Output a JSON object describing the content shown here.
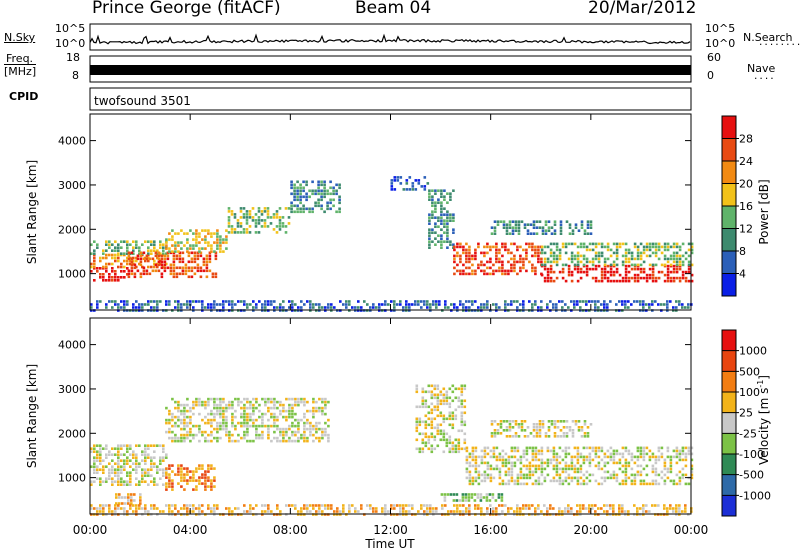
{
  "header": {
    "station": "Prince George (fitACF)",
    "beam": "Beam 04",
    "date": "20/Mar/2012"
  },
  "sky_panel": {
    "left_label": "N.Sky",
    "right_label": "N.Search",
    "left_ticks": [
      "10^5",
      "10^0"
    ],
    "right_ticks": [
      "10^5",
      "10^0"
    ],
    "right_legend": "........"
  },
  "freq_panel": {
    "label_top": "Freq.",
    "label_unit": "[MHz]",
    "ticks": [
      "18",
      "8"
    ],
    "right_label": "Nave",
    "right_ticks": [
      "60",
      "0"
    ],
    "right_legend": "...."
  },
  "cpid": {
    "label": "CPID",
    "value": "twofsound 3501"
  },
  "power_panel": {
    "ylabel": "Slant Range [km]",
    "yticks": [
      "4000",
      "3000",
      "2000",
      "1000"
    ],
    "colorbar_label": "Power [dB]",
    "colorbar_ticks": [
      "28",
      "24",
      "20",
      "16",
      "12",
      "8",
      "4"
    ],
    "colors": [
      "#0a1fe6",
      "#2b5fb8",
      "#3d8a6e",
      "#5fb36a",
      "#f2c21a",
      "#f28a12",
      "#e84a12",
      "#e61010"
    ]
  },
  "velocity_panel": {
    "ylabel": "Slant Range [km]",
    "yticks": [
      "4000",
      "3000",
      "2000",
      "1000"
    ],
    "colorbar_label": "Velocity [m s",
    "colorbar_label_sup": "-1",
    "colorbar_label_end": "]",
    "colorbar_ticks": [
      "1000",
      "500",
      "100",
      "25",
      "-25",
      "-100",
      "-500",
      "-1000"
    ],
    "colors": [
      "#1c2fd6",
      "#2e6aa8",
      "#2f8a55",
      "#7cc246",
      "#c8c8c8",
      "#f2b31a",
      "#f27d12",
      "#e84510",
      "#e61010"
    ]
  },
  "time_axis": {
    "label": "Time UT",
    "ticks": [
      "00:00",
      "04:00",
      "08:00",
      "12:00",
      "16:00",
      "20:00",
      "00:00"
    ]
  },
  "chart_data": {
    "type": "heatmap",
    "x_range_hours": [
      0,
      24
    ],
    "y_range_km": [
      180,
      4600
    ],
    "power": {
      "clim_db": [
        0,
        30
      ],
      "bands": [
        {
          "x": [
            0.0,
            1.5
          ],
          "y": [
            850,
            1150
          ],
          "level": 7
        },
        {
          "x": [
            0.0,
            3.0
          ],
          "y": [
            1150,
            1450
          ],
          "level": 5
        },
        {
          "x": [
            0.0,
            3.0
          ],
          "y": [
            1450,
            1750
          ],
          "level": 3
        },
        {
          "x": [
            1.5,
            5.0
          ],
          "y": [
            900,
            1500
          ],
          "level": 6
        },
        {
          "x": [
            3.0,
            5.5
          ],
          "y": [
            1500,
            2000
          ],
          "level": 4
        },
        {
          "x": [
            5.5,
            8.0
          ],
          "y": [
            1900,
            2500
          ],
          "level": 3
        },
        {
          "x": [
            8.0,
            10.0
          ],
          "y": [
            2400,
            3100
          ],
          "level": 2
        },
        {
          "x": [
            12.0,
            13.5
          ],
          "y": [
            2900,
            3200
          ],
          "level": 1
        },
        {
          "x": [
            13.5,
            14.5
          ],
          "y": [
            1600,
            2900
          ],
          "level": 2
        },
        {
          "x": [
            14.5,
            18.0
          ],
          "y": [
            1000,
            1700
          ],
          "level": 6
        },
        {
          "x": [
            18.0,
            24.0
          ],
          "y": [
            850,
            1200
          ],
          "level": 7
        },
        {
          "x": [
            18.0,
            24.0
          ],
          "y": [
            1200,
            1700
          ],
          "level": 3
        },
        {
          "x": [
            16.0,
            20.0
          ],
          "y": [
            1900,
            2200
          ],
          "level": 2
        },
        {
          "x": [
            0.0,
            24.0
          ],
          "y": [
            180,
            400
          ],
          "level": 1
        }
      ]
    },
    "velocity": {
      "clim": [
        -1000,
        1000
      ],
      "bands": [
        {
          "x": [
            0.0,
            3.0
          ],
          "y": [
            850,
            1750
          ],
          "level": 4
        },
        {
          "x": [
            3.0,
            5.0
          ],
          "y": [
            700,
            1300
          ],
          "level": 6
        },
        {
          "x": [
            1.0,
            2.0
          ],
          "y": [
            400,
            650
          ],
          "level": 5
        },
        {
          "x": [
            3.0,
            9.5
          ],
          "y": [
            1800,
            2800
          ],
          "level": 4
        },
        {
          "x": [
            13.0,
            15.0
          ],
          "y": [
            1600,
            3100
          ],
          "level": 4
        },
        {
          "x": [
            15.0,
            24.0
          ],
          "y": [
            850,
            1700
          ],
          "level": 4
        },
        {
          "x": [
            16.0,
            20.0
          ],
          "y": [
            1900,
            2300
          ],
          "level": 4
        },
        {
          "x": [
            14.0,
            16.5
          ],
          "y": [
            450,
            650
          ],
          "level": 3
        },
        {
          "x": [
            0.0,
            24.0
          ],
          "y": [
            180,
            400
          ],
          "level": 5
        }
      ]
    }
  }
}
